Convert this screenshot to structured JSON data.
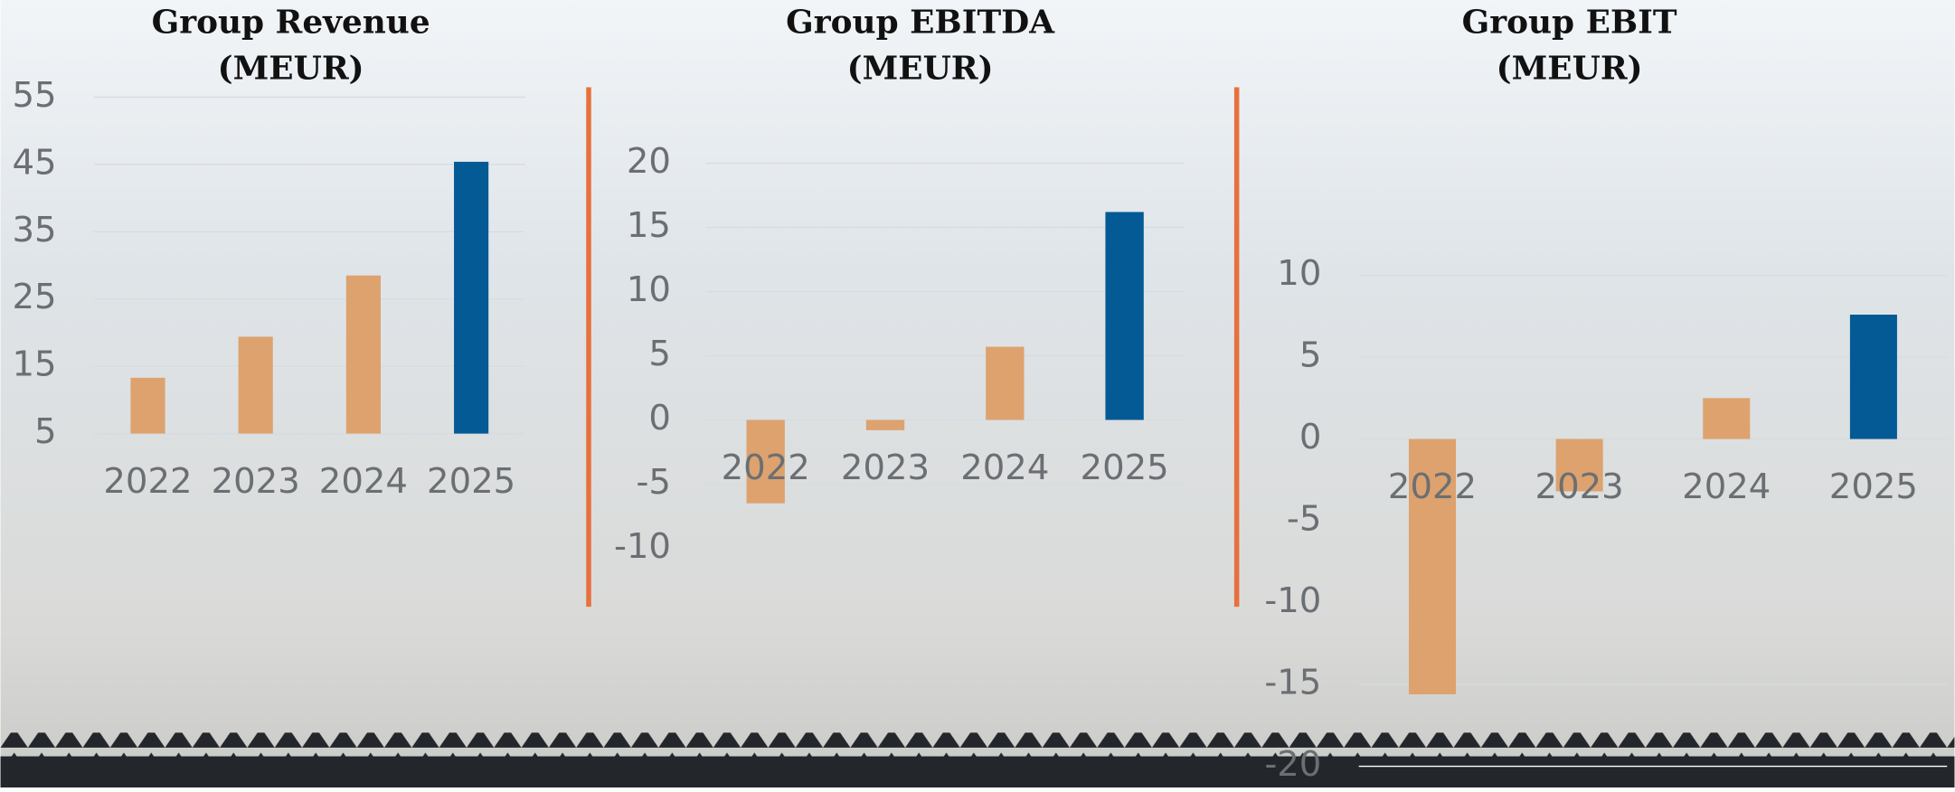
{
  "chart_data": [
    {
      "type": "bar",
      "title": "Group Revenue",
      "subtitle": "(MEUR)",
      "categories": [
        "2022",
        "2023",
        "2024",
        "2025"
      ],
      "values": [
        13.3,
        19.4,
        28.5,
        45.4
      ],
      "colors": [
        "#dda26e",
        "#dda26e",
        "#dda26e",
        "#035a94"
      ],
      "ylim": [
        5,
        55
      ],
      "yticks": [
        5,
        15,
        25,
        35,
        45,
        55
      ],
      "grid": true
    },
    {
      "type": "bar",
      "title": "Group EBITDA",
      "subtitle": "(MEUR)",
      "categories": [
        "2022",
        "2023",
        "2024",
        "2025"
      ],
      "values": [
        -6.5,
        -0.8,
        5.7,
        16.2
      ],
      "colors": [
        "#dda26e",
        "#dda26e",
        "#dda26e",
        "#035a94"
      ],
      "ylim": [
        -10,
        20
      ],
      "yticks": [
        -10,
        -5,
        0,
        5,
        10,
        15,
        20
      ],
      "grid": true
    },
    {
      "type": "bar",
      "title": "Group EBIT",
      "subtitle": "(MEUR)",
      "categories": [
        "2022",
        "2023",
        "2024",
        "2025"
      ],
      "values": [
        -15.6,
        -3.2,
        2.5,
        7.6
      ],
      "colors": [
        "#dda26e",
        "#dda26e",
        "#dda26e",
        "#035a94"
      ],
      "ylim": [
        -20,
        10
      ],
      "yticks": [
        -20,
        -15,
        -10,
        -5,
        0,
        5,
        10
      ],
      "grid": true
    }
  ]
}
